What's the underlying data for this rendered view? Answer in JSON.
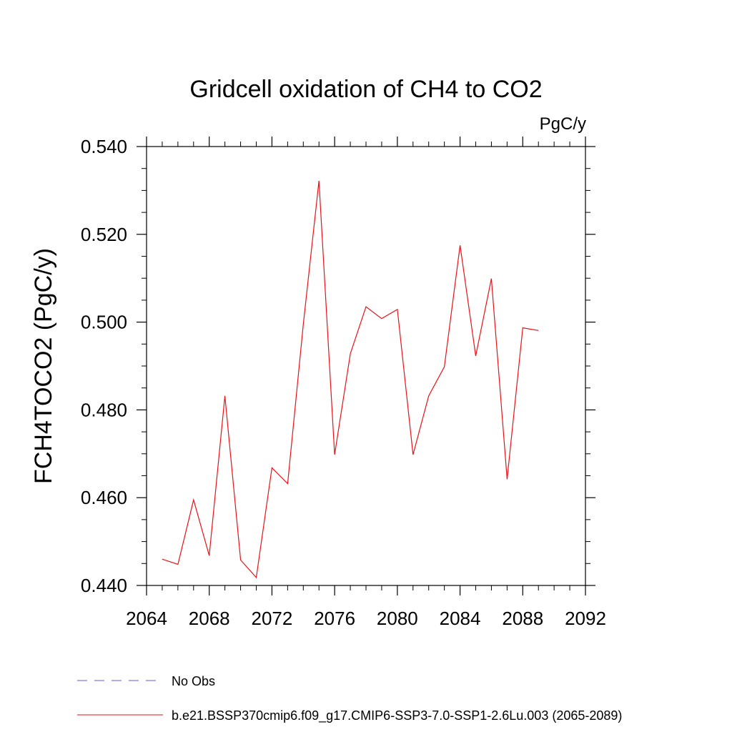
{
  "chart_data": {
    "type": "line",
    "title": "Gridcell oxidation of CH4 to CO2",
    "units_label": "PgC/y",
    "ylabel": "FCH4TOCO2  (PgC/y)",
    "xlabel": "",
    "xlim": [
      2064,
      2092
    ],
    "ylim": [
      0.44,
      0.54
    ],
    "x_ticks": [
      2064,
      2068,
      2072,
      2076,
      2080,
      2084,
      2088,
      2092
    ],
    "x_tick_labels": [
      "2064",
      "2068",
      "2072",
      "2076",
      "2080",
      "2084",
      "2088",
      "2092"
    ],
    "y_ticks": [
      0.44,
      0.46,
      0.48,
      0.5,
      0.52,
      0.54
    ],
    "y_tick_labels": [
      "0.440",
      "0.460",
      "0.480",
      "0.500",
      "0.520",
      "0.540"
    ],
    "grid": false,
    "legend_placement": "bottom",
    "series": [
      {
        "name": "No Obs",
        "color": "#6a5acd",
        "dash": true,
        "x": [],
        "values": []
      },
      {
        "name": "b.e21.BSSP370cmip6.f09_g17.CMIP6-SSP3-7.0-SSP1-2.6Lu.003 (2065-2089)",
        "color": "#e8131a",
        "dash": false,
        "x": [
          2065,
          2066,
          2067,
          2068,
          2069,
          2070,
          2071,
          2072,
          2073,
          2074,
          2075,
          2076,
          2077,
          2078,
          2079,
          2080,
          2081,
          2082,
          2083,
          2084,
          2085,
          2086,
          2087,
          2088,
          2089
        ],
        "values": [
          0.446,
          0.4448,
          0.4595,
          0.4468,
          0.4832,
          0.4458,
          0.4418,
          0.4668,
          0.4632,
          0.4995,
          0.5322,
          0.4698,
          0.4928,
          0.5035,
          0.5008,
          0.5029,
          0.4698,
          0.4832,
          0.4898,
          0.5175,
          0.4923,
          0.5099,
          0.4642,
          0.4987,
          0.4981
        ]
      }
    ]
  }
}
